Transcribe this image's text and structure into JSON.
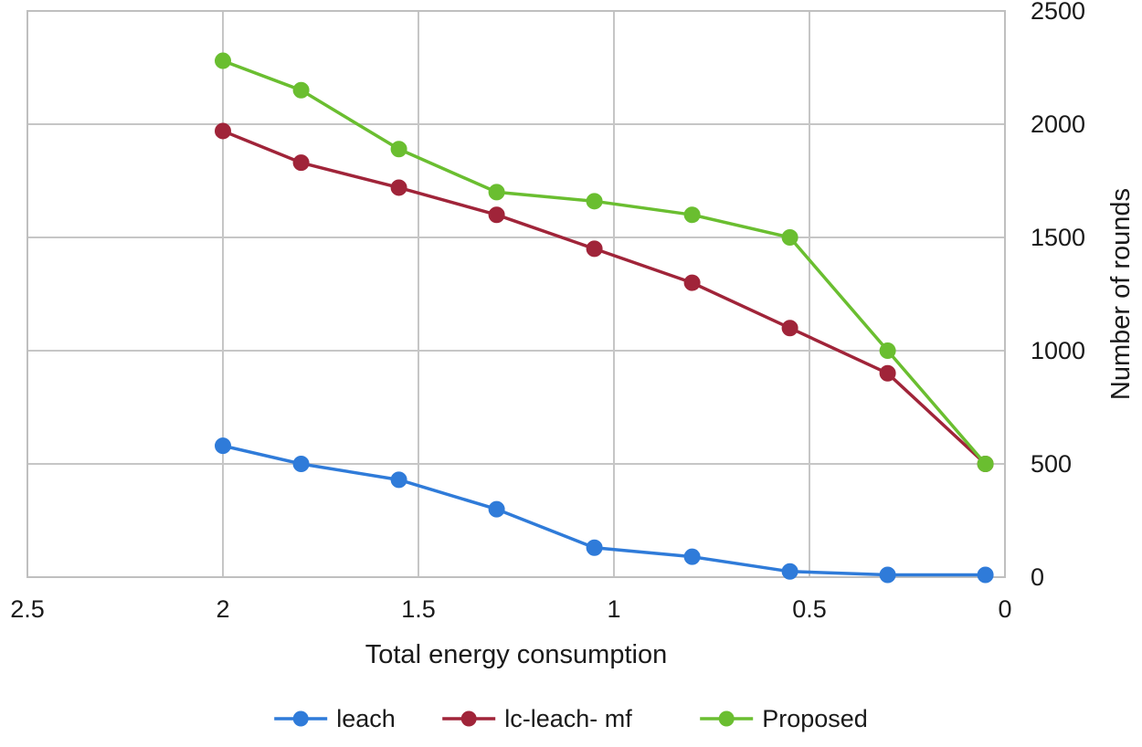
{
  "chart_data": {
    "type": "line",
    "title": "",
    "xlabel": "Total energy consumption",
    "ylabel": "Number of rounds",
    "xlim": [
      2.5,
      0
    ],
    "ylim": [
      0,
      2500
    ],
    "x_axis_reversed": true,
    "grid": true,
    "legend_position": "bottom",
    "x_ticks": [
      2.5,
      2,
      1.5,
      1,
      0.5,
      0
    ],
    "x_tick_labels": [
      "2.5",
      "2",
      "1.5",
      "1",
      "0.5",
      "0"
    ],
    "y_ticks": [
      0,
      500,
      1000,
      1500,
      2000,
      2500
    ],
    "y_tick_labels": [
      "0",
      "500",
      "1000",
      "1500",
      "2000",
      "2500"
    ],
    "x": [
      2.0,
      1.8,
      1.55,
      1.3,
      1.05,
      0.8,
      0.55,
      0.3,
      0.05
    ],
    "series": [
      {
        "name": "leach",
        "color": "#2f7bd9",
        "values": [
          580,
          500,
          430,
          300,
          130,
          90,
          25,
          10,
          10
        ]
      },
      {
        "name": "lc-leach- mf",
        "color": "#a02439",
        "values": [
          1970,
          1830,
          1720,
          1600,
          1450,
          1300,
          1100,
          900,
          500
        ]
      },
      {
        "name": "Proposed",
        "color": "#6abe30",
        "values": [
          2280,
          2150,
          1890,
          1700,
          1660,
          1600,
          1500,
          1000,
          500
        ]
      }
    ]
  },
  "colors": {
    "grid": "#c6c6c6",
    "plot_border": "#bfbfbf",
    "axis_text": "#1a1a1a",
    "background": "#ffffff"
  }
}
